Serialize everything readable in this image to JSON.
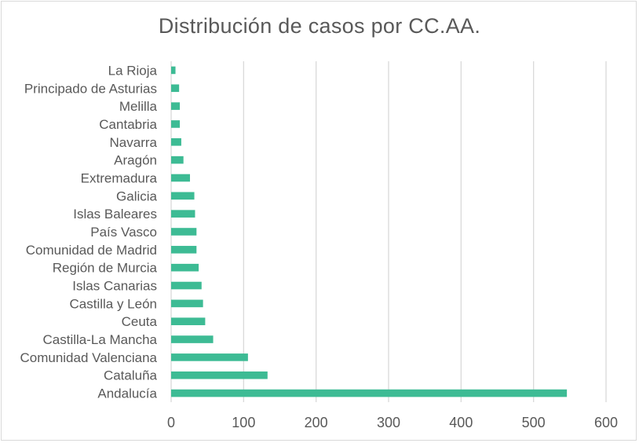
{
  "chart_data": {
    "type": "bar",
    "orientation": "horizontal",
    "title": "Distribución de casos por CC.AA.",
    "categories": [
      "Andalucía",
      "Cataluña",
      "Comunidad Valenciana",
      "Castilla-La Mancha",
      "Ceuta",
      "Castilla y León",
      "Islas Canarias",
      "Región de Murcia",
      "Comunidad de Madrid",
      "País Vasco",
      "Islas Baleares",
      "Galicia",
      "Extremadura",
      "Aragón",
      "Navarra",
      "Cantabria",
      "Melilla",
      "Principado de Asturias",
      "La Rioja"
    ],
    "values": [
      546,
      133,
      106,
      58,
      47,
      44,
      42,
      38,
      35,
      35,
      33,
      32,
      26,
      17,
      14,
      12,
      12,
      11,
      6
    ],
    "xlim": [
      0,
      600
    ],
    "xticks": [
      "0",
      "100",
      "200",
      "300",
      "400",
      "500",
      "600"
    ],
    "grid": true,
    "bar_color": "#3dbb94",
    "grid_color": "#d9d9d9",
    "text_color": "#595959"
  }
}
